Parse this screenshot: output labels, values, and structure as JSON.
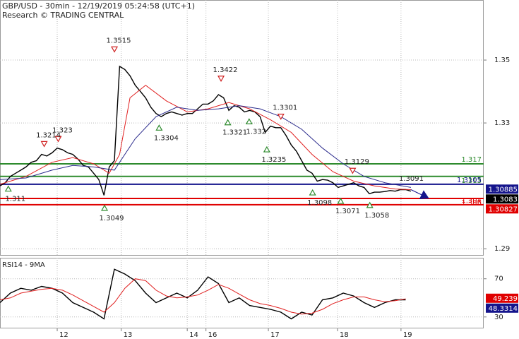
{
  "chart_data": [
    {
      "type": "line",
      "title": "GBP/USD - 30min - 12/19/2019 05:24:58 (UTC+1)",
      "subtitle": "Research © TRADING CENTRAL",
      "xlim": [
        0,
        93
      ],
      "ylim": [
        1.2878,
        1.3691
      ],
      "yticks": [
        1.29,
        1.33,
        1.35
      ],
      "grid": true,
      "series": [
        {
          "color": "#000000",
          "x": [
            0,
            1,
            2,
            3,
            4,
            5,
            6,
            7,
            8,
            9,
            10,
            11,
            12,
            13,
            14,
            15,
            16,
            17,
            18,
            19,
            20,
            21,
            22,
            23,
            24,
            25,
            26,
            27,
            28,
            29,
            30,
            31,
            32,
            33,
            34,
            35,
            36,
            37,
            38,
            39,
            40,
            41,
            42,
            43,
            44,
            45,
            46,
            47,
            48,
            49,
            50,
            51,
            52,
            53,
            54,
            55,
            56,
            57,
            58,
            59,
            60,
            61,
            62,
            63,
            64,
            65,
            66,
            67,
            68,
            69,
            70,
            71,
            72,
            73,
            74,
            75,
            76,
            77,
            78,
            79
          ],
          "values": [
            1.31,
            1.311,
            1.313,
            1.314,
            1.315,
            1.316,
            1.3175,
            1.318,
            1.32,
            1.3195,
            1.3205,
            1.322,
            1.3215,
            1.3205,
            1.32,
            1.3185,
            1.3165,
            1.316,
            1.314,
            1.312,
            1.307,
            1.316,
            1.318,
            1.348,
            1.347,
            1.345,
            1.342,
            1.34,
            1.338,
            1.335,
            1.333,
            1.332,
            1.333,
            1.3335,
            1.333,
            1.3325,
            1.333,
            1.333,
            1.3345,
            1.336,
            1.336,
            1.337,
            1.339,
            1.338,
            1.334,
            1.3355,
            1.335,
            1.3335,
            1.334,
            1.3335,
            1.332,
            1.327,
            1.329,
            1.3285,
            1.3285,
            1.326,
            1.323,
            1.321,
            1.318,
            1.315,
            1.314,
            1.3115,
            1.312,
            1.3118,
            1.311,
            1.3095,
            1.31,
            1.3105,
            1.311,
            1.31,
            1.3095,
            1.3075,
            1.308,
            1.308,
            1.3082,
            1.3085,
            1.3083,
            1.3088,
            1.3088,
            1.3083
          ]
        },
        {
          "color": "#e02020",
          "x": [
            0,
            5,
            10,
            14,
            18,
            21,
            23,
            25,
            28,
            32,
            36,
            40,
            44,
            48,
            52,
            56,
            60,
            64,
            68,
            72,
            76,
            79
          ],
          "values": [
            1.3105,
            1.313,
            1.3175,
            1.319,
            1.317,
            1.314,
            1.32,
            1.338,
            1.342,
            1.337,
            1.3335,
            1.3345,
            1.3365,
            1.3345,
            1.331,
            1.327,
            1.32,
            1.3145,
            1.3115,
            1.31,
            1.309,
            1.3088
          ]
        },
        {
          "color": "#2b2b8c",
          "x": [
            0,
            5,
            10,
            14,
            18,
            22,
            26,
            30,
            34,
            38,
            42,
            46,
            50,
            54,
            58,
            62,
            66,
            70,
            74,
            79
          ],
          "values": [
            1.312,
            1.3125,
            1.315,
            1.3165,
            1.316,
            1.315,
            1.325,
            1.332,
            1.335,
            1.334,
            1.3345,
            1.3355,
            1.3345,
            1.332,
            1.328,
            1.322,
            1.317,
            1.313,
            1.311,
            1.3095
          ]
        },
        {
          "color": "#14148c",
          "arrow": true,
          "x": [
            79,
            82.5
          ],
          "values": [
            1.3088,
            1.306
          ]
        }
      ],
      "levels": [
        {
          "value": 1.317,
          "color": "#2e8b2e"
        },
        {
          "value": 1.313,
          "color": "#2e8b2e"
        },
        {
          "value": 1.3105,
          "color": "#14148c"
        },
        {
          "value": 1.306,
          "color": "#e00000"
        },
        {
          "value": 1.304,
          "color": "#e00000"
        }
      ],
      "last_values": [
        {
          "value": 1.30885,
          "color": "#14148c"
        },
        {
          "value": 1.3083,
          "color": "#000000"
        },
        {
          "value": 1.30827,
          "color": "#e00000"
        }
      ],
      "annotations": [
        {
          "value": 1.3515,
          "x": 22,
          "marker": "down"
        },
        {
          "value": 1.3422,
          "x": 42.5,
          "marker": "down"
        },
        {
          "value": 1.3301,
          "x": 54,
          "marker": "down"
        },
        {
          "value": 1.3214,
          "x": 8.5,
          "marker": "down"
        },
        {
          "value": 1.323,
          "x": 11.2,
          "marker": "down"
        },
        {
          "value": 1.3304,
          "x": 30.6,
          "marker": "up"
        },
        {
          "value": 1.3321,
          "x": 43.8,
          "marker": "up"
        },
        {
          "value": 1.3324,
          "label": "1.332",
          "x": 47.9,
          "marker": "up"
        },
        {
          "value": 1.3235,
          "x": 51.3,
          "marker": "up"
        },
        {
          "value": 1.3129,
          "x": 67.8,
          "marker": "down"
        },
        {
          "value": 1.3091,
          "x": 78
        },
        {
          "value": 1.311,
          "x": 1.6,
          "marker": "up"
        },
        {
          "value": 1.3049,
          "x": 20.1,
          "marker": "up"
        },
        {
          "value": 1.3098,
          "x": 60.1,
          "marker": "up"
        },
        {
          "value": 1.3071,
          "x": 65.5,
          "marker": "up"
        },
        {
          "value": 1.3058,
          "x": 71.1,
          "marker": "up"
        }
      ]
    },
    {
      "type": "line",
      "title": "RSI14 - 9MA",
      "xlim": [
        0,
        93
      ],
      "xticks": [
        {
          "value": 11,
          "label": "12"
        },
        {
          "value": 23.3,
          "label": "13"
        },
        {
          "value": 36,
          "label": "14"
        },
        {
          "value": 39.6,
          "label": "16"
        },
        {
          "value": 51.6,
          "label": "17"
        },
        {
          "value": 64.9,
          "label": "18"
        },
        {
          "value": 77.1,
          "label": "19"
        }
      ],
      "ylim": [
        18,
        92
      ],
      "yticks": [
        30,
        70
      ],
      "grid": true,
      "series": [
        {
          "color": "#000000",
          "x": [
            0,
            2,
            4,
            6,
            8,
            10,
            12,
            14,
            16,
            18,
            20,
            22,
            24,
            26,
            28,
            30,
            32,
            34,
            36,
            38,
            40,
            42,
            44,
            46,
            48,
            50,
            52,
            54,
            56,
            58,
            60,
            62,
            64,
            66,
            68,
            70,
            72,
            74,
            76,
            78
          ],
          "values": [
            45,
            55,
            60,
            58,
            62,
            60,
            55,
            45,
            40,
            35,
            28,
            80,
            75,
            68,
            55,
            45,
            50,
            55,
            50,
            58,
            72,
            65,
            45,
            50,
            42,
            40,
            38,
            35,
            28,
            35,
            32,
            48,
            50,
            55,
            52,
            45,
            40,
            45,
            48,
            48
          ]
        },
        {
          "color": "#e02020",
          "x": [
            0,
            2,
            4,
            6,
            8,
            10,
            12,
            14,
            16,
            18,
            20,
            22,
            24,
            26,
            28,
            30,
            32,
            34,
            36,
            38,
            40,
            42,
            44,
            46,
            48,
            50,
            52,
            54,
            56,
            58,
            60,
            62,
            64,
            66,
            68,
            70,
            72,
            74,
            76,
            78
          ],
          "values": [
            48,
            50,
            55,
            57,
            59,
            60,
            58,
            53,
            47,
            41,
            35,
            45,
            60,
            70,
            68,
            58,
            52,
            50,
            51,
            53,
            58,
            64,
            60,
            54,
            48,
            44,
            42,
            39,
            35,
            33,
            34,
            38,
            44,
            48,
            51,
            51,
            48,
            46,
            47,
            49
          ]
        }
      ],
      "last_values": [
        {
          "value": 49.239,
          "color": "#e00000"
        },
        {
          "value": 48.3314,
          "color": "#14148c"
        }
      ]
    }
  ]
}
